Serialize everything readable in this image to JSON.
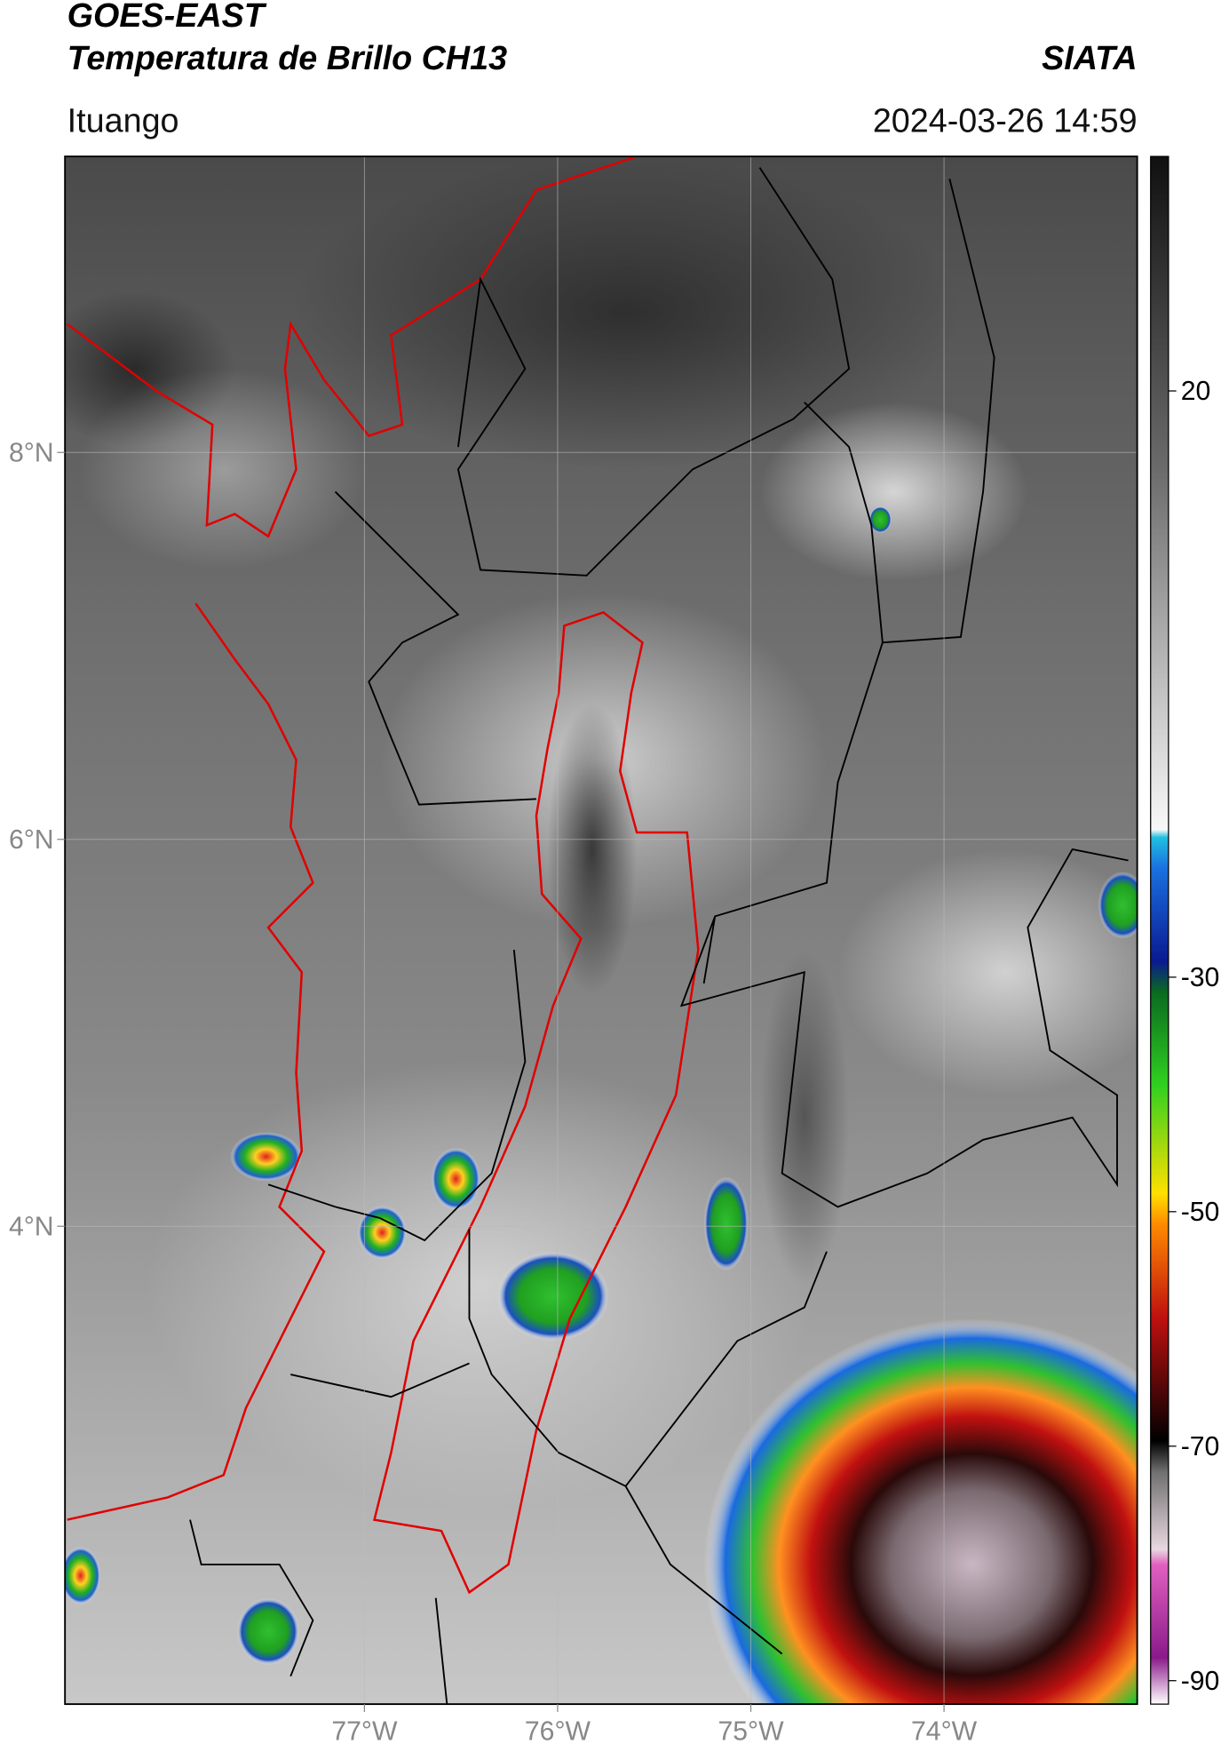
{
  "header": {
    "satellite": "GOES-EAST",
    "product": "Temperatura de Brillo CH13",
    "org": "SIATA",
    "location": "Ituango",
    "datetime": "2024-03-26 14:59"
  },
  "map": {
    "xlim": [
      -78.55,
      -73.0
    ],
    "ylim": [
      1.53,
      9.53
    ],
    "xticks": [
      {
        "value": -77,
        "label": "77°W"
      },
      {
        "value": -76,
        "label": "76°W"
      },
      {
        "value": -75,
        "label": "75°W"
      },
      {
        "value": -74,
        "label": "74°W"
      }
    ],
    "yticks": [
      {
        "value": 8,
        "label": "8°N"
      },
      {
        "value": 6,
        "label": "6°N"
      },
      {
        "value": 4,
        "label": "4°N"
      }
    ],
    "grid": true
  },
  "colorbar": {
    "vlim": [
      -92,
      40
    ],
    "ticks": [
      20,
      -30,
      -50,
      -70,
      -90
    ]
  }
}
